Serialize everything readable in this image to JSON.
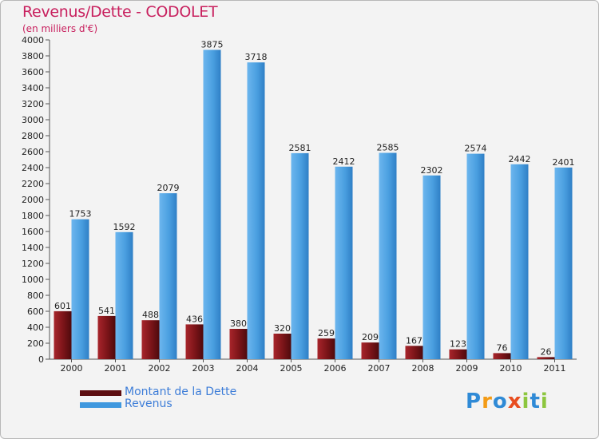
{
  "header": {
    "title": "Revenus/Dette - CODOLET",
    "subtitle": "(en milliers d'€)"
  },
  "chart_data": {
    "type": "bar",
    "title": "Revenus/Dette - CODOLET",
    "ylabel": "(en milliers d'€)",
    "xlabel": "",
    "ylim": [
      0,
      4000
    ],
    "ytick_step": 200,
    "grid": false,
    "legend_position": "bottom-left",
    "categories": [
      "2000",
      "2001",
      "2002",
      "2003",
      "2004",
      "2005",
      "2006",
      "2007",
      "2008",
      "2009",
      "2010",
      "2011"
    ],
    "series": [
      {
        "name": "Montant de la Dette",
        "color": "#7a1418",
        "values": [
          601,
          541,
          488,
          436,
          380,
          320,
          259,
          209,
          167,
          123,
          76,
          26
        ]
      },
      {
        "name": "Revenus",
        "color": "#4a9fe0",
        "values": [
          1753,
          1592,
          2079,
          3875,
          3718,
          2581,
          2412,
          2585,
          2302,
          2574,
          2442,
          2401
        ]
      }
    ]
  },
  "legend": {
    "items": [
      {
        "label": "Montant de la Dette",
        "color": "#5c0d10"
      },
      {
        "label": "Revenus",
        "color": "#3f98de"
      }
    ]
  },
  "logo": {
    "letters": [
      "P",
      "r",
      "o",
      "x",
      "i",
      "t",
      "i"
    ],
    "colors": [
      "#2f8ad6",
      "#f39b16",
      "#2f8ad6",
      "#e84d1f",
      "#8cc63e",
      "#2f8ad6",
      "#8cc63e"
    ]
  }
}
